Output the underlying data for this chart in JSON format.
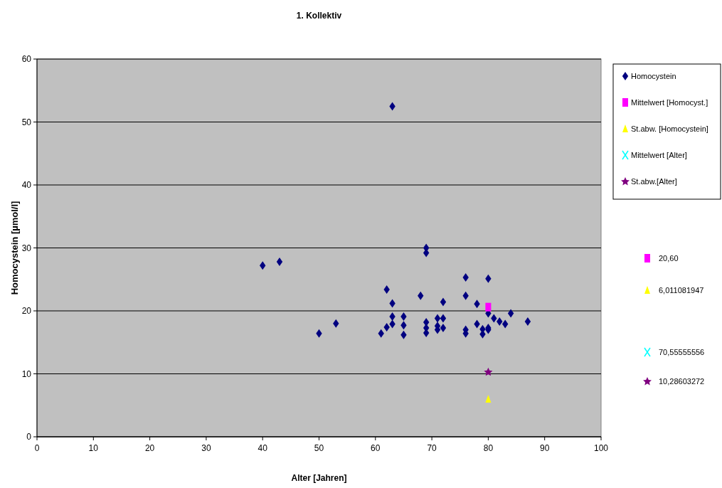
{
  "chart_data": {
    "type": "scatter",
    "title": "1. Kollektiv",
    "xlabel": "Alter [Jahren]",
    "ylabel": "Homocystein [µmol/l]",
    "xlim": [
      0,
      100
    ],
    "xticks": [
      0,
      10,
      20,
      30,
      40,
      50,
      60,
      70,
      80,
      90,
      100
    ],
    "ylim": [
      0,
      60
    ],
    "yticks": [
      0,
      10,
      20,
      30,
      40,
      50,
      60
    ],
    "grid": "y",
    "legend": "right",
    "series": [
      {
        "name": "Homocystein",
        "color": "#000080",
        "marker": "diamond",
        "x": [
          63,
          40,
          43,
          50,
          53,
          62,
          63,
          63,
          63,
          62,
          61,
          65,
          65,
          65,
          68,
          69,
          69,
          69,
          69,
          69,
          72,
          71,
          72,
          71,
          71,
          72,
          76,
          76,
          76,
          76,
          78,
          78,
          79,
          79,
          80,
          80,
          80,
          80,
          81,
          82,
          83,
          84,
          87
        ],
        "values": [
          52.5,
          27.2,
          27.8,
          16.4,
          18.0,
          23.4,
          21.2,
          19.1,
          17.9,
          17.4,
          16.4,
          19.1,
          17.7,
          16.2,
          22.4,
          30.0,
          29.2,
          18.2,
          17.3,
          16.5,
          21.4,
          18.8,
          18.8,
          17.6,
          17.0,
          17.3,
          25.3,
          22.4,
          17.0,
          16.4,
          21.1,
          17.9,
          17.1,
          16.3,
          25.1,
          19.6,
          17.3,
          17.0,
          18.8,
          18.3,
          17.9,
          19.6,
          18.3
        ]
      },
      {
        "name": "Mittelwert [Homocyst.]",
        "color": "#ff00ff",
        "marker": "square",
        "x": [
          80
        ],
        "values": [
          20.6
        ]
      },
      {
        "name": "St.abw. [Homocystein]",
        "color": "#ffff00",
        "marker": "triangle",
        "x": [
          80
        ],
        "values": [
          6.0
        ]
      },
      {
        "name": "Mittelwert [Alter]",
        "color": "#00ffff",
        "marker": "cross"
      },
      {
        "name": "St.abw.[Alter]",
        "color": "#800080",
        "marker": "star",
        "x": [
          80
        ],
        "values": [
          10.3
        ]
      }
    ],
    "annotations": [
      "20,60",
      "6,011081947",
      "70,55555556",
      "10,28603272"
    ]
  }
}
